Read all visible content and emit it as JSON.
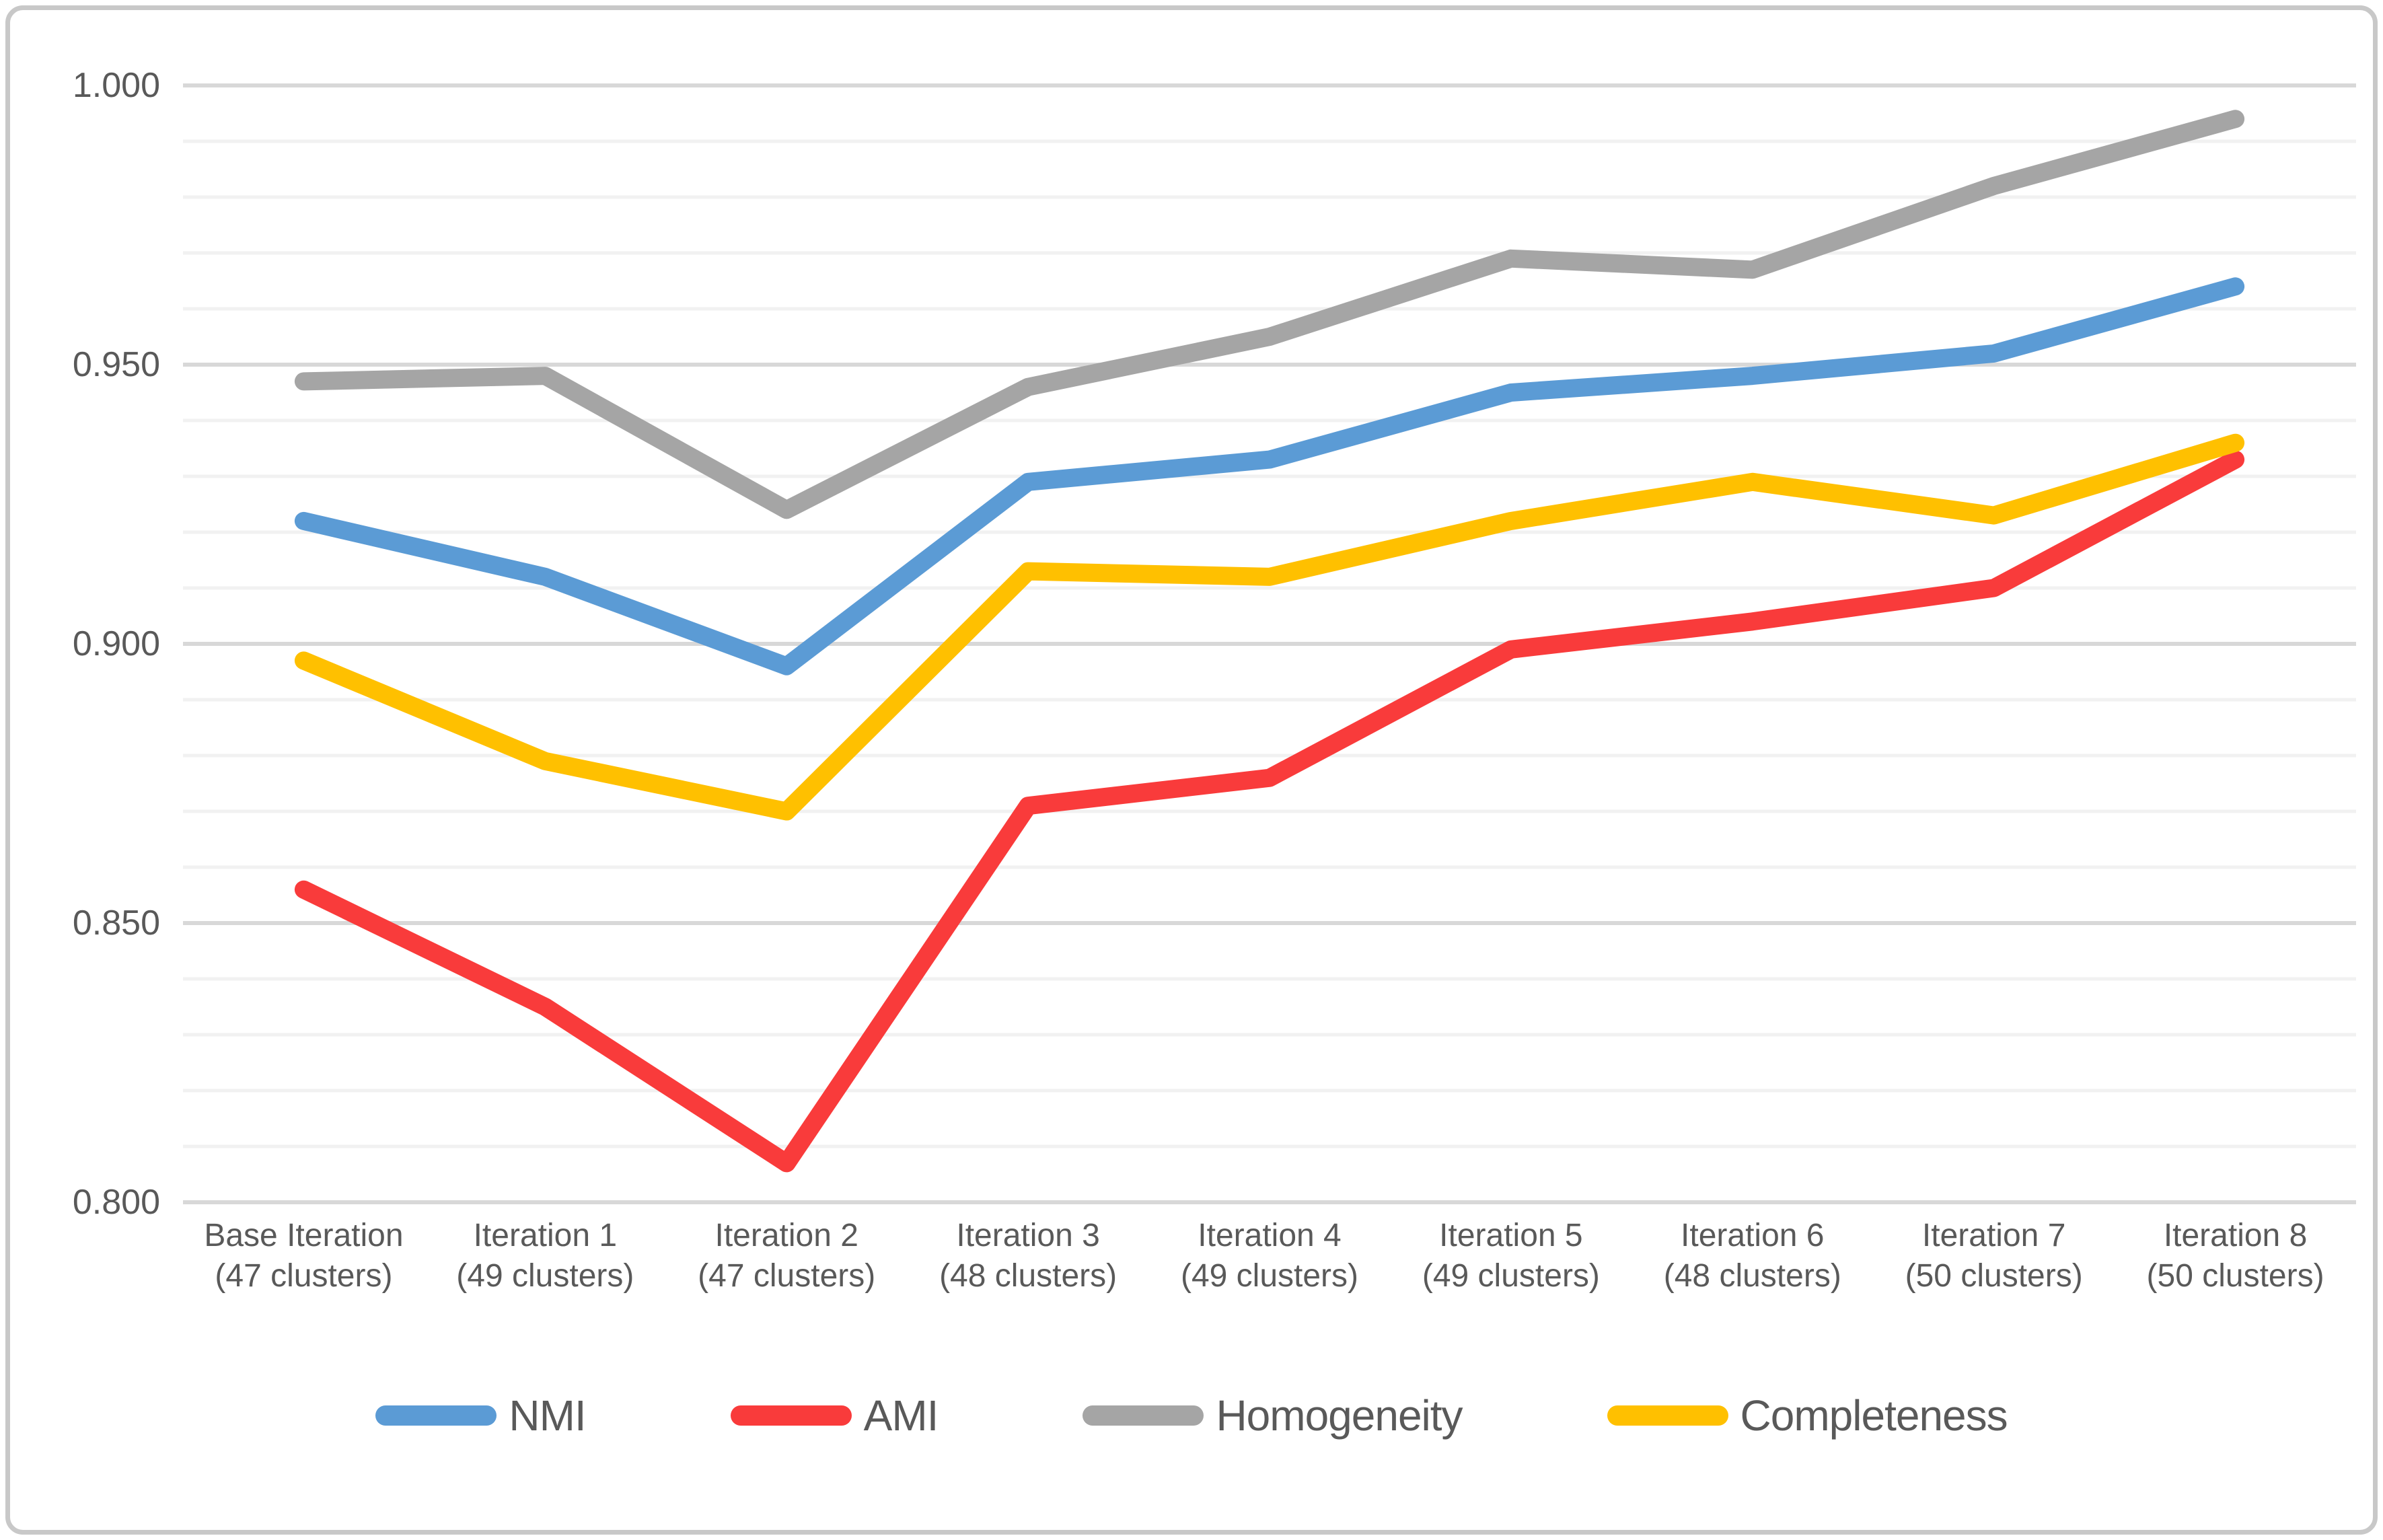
{
  "chart_data": {
    "type": "line",
    "title": "",
    "xlabel": "",
    "ylabel": "",
    "ylim": [
      0.8,
      1.0
    ],
    "y_major_step": 0.05,
    "y_minor_step": 0.01,
    "y_tick_labels": [
      "1.000",
      "0.950",
      "0.900",
      "0.850",
      "0.800"
    ],
    "grid": "on",
    "legend_position": "bottom",
    "categories": [
      "Base Iteration (47 clusters)",
      "Iteration 1 (49 clusters)",
      "Iteration 2 (47 clusters)",
      "Iteration 3 (48 clusters)",
      "Iteration 4 (49 clusters)",
      "Iteration 5 (49 clusters)",
      "Iteration 6 (48 clusters)",
      "Iteration 7 (50 clusters)",
      "Iteration 8 (50 clusters)"
    ],
    "categories_lines": [
      [
        "Base Iteration",
        "(47 clusters)"
      ],
      [
        "Iteration 1",
        "(49 clusters)"
      ],
      [
        "Iteration 2",
        "(47 clusters)"
      ],
      [
        "Iteration 3",
        "(48 clusters)"
      ],
      [
        "Iteration 4",
        "(49 clusters)"
      ],
      [
        "Iteration 5",
        "(49 clusters)"
      ],
      [
        "Iteration 6",
        "(48 clusters)"
      ],
      [
        "Iteration 7",
        "(50 clusters)"
      ],
      [
        "Iteration 8",
        "(50 clusters)"
      ]
    ],
    "series": [
      {
        "name": "NMI",
        "color": "#5B9BD5",
        "values": [
          0.922,
          0.912,
          0.896,
          0.929,
          0.933,
          0.945,
          0.948,
          0.952,
          0.964
        ]
      },
      {
        "name": "AMI",
        "color": "#F93B3B",
        "values": [
          0.856,
          0.835,
          0.807,
          0.871,
          0.876,
          0.899,
          0.904,
          0.91,
          0.933
        ]
      },
      {
        "name": "Homogeneity",
        "color": "#A5A5A5",
        "values": [
          0.947,
          0.948,
          0.924,
          0.946,
          0.955,
          0.969,
          0.967,
          0.982,
          0.994
        ]
      },
      {
        "name": "Completeness",
        "color": "#FFC000",
        "values": [
          0.897,
          0.879,
          0.87,
          0.913,
          0.912,
          0.922,
          0.929,
          0.923,
          0.936
        ]
      }
    ]
  },
  "colors": {
    "grid_minor": "#f1f1f1",
    "grid_major": "#d8d8d8",
    "axis_text": "#595959",
    "frame_border": "#c8c8c8",
    "background": "#ffffff"
  }
}
